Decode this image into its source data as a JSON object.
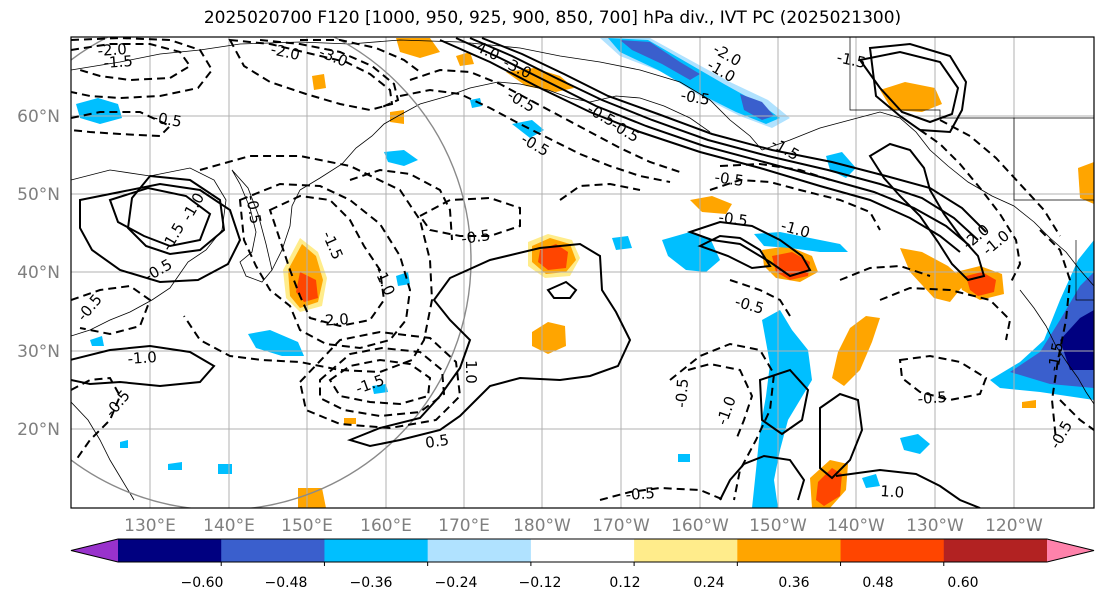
{
  "title": "2025020700 F120 [1000, 950, 925, 900, 850, 700] hPa div., IVT PC (2025021300)",
  "lat_labels": [
    "60°N",
    "50°N",
    "40°N",
    "30°N",
    "20°N"
  ],
  "lon_labels": [
    "130°E",
    "140°E",
    "150°E",
    "160°E",
    "170°E",
    "180°W",
    "170°W",
    "160°W",
    "150°W",
    "140°W",
    "130°W",
    "120°W"
  ],
  "contour_labels": [
    "-2.0",
    "-1.5",
    "-2.0",
    "-3.0",
    "-4.0",
    "-3.0",
    "-2.0",
    "-1.0",
    "-1.5",
    "-0.5",
    "-0.5",
    "-0.5",
    "-0.5",
    "-0.5",
    "-1.5",
    "-0.5",
    "-0.5",
    "-0.5",
    "-1.0",
    "-2.0",
    "-1.0",
    "-1.5",
    "-0.5",
    "-1.5",
    "-0.5",
    "-1.0",
    "-0.5",
    "-1.0",
    "-1.5",
    "-2.0",
    "-0.5",
    "-0.5",
    "-0.5",
    "-1.0",
    "-0.5",
    "-0.5",
    "-0.5",
    "-1.5",
    "-1.0",
    "1.0",
    "0.5",
    "-0.5",
    "1.0"
  ],
  "colorbar": {
    "tick_labels": [
      "−0.60",
      "−0.48",
      "−0.36",
      "−0.24",
      "−0.12",
      "0.12",
      "0.24",
      "0.36",
      "0.48",
      "0.60"
    ],
    "colors": [
      "#9932cc",
      "#000080",
      "#3a5fcd",
      "#00bfff",
      "#b0e2ff",
      "#ffffff",
      "#ffec8b",
      "#ffa500",
      "#ff4500",
      "#b22222",
      "#ff82ab"
    ]
  }
}
